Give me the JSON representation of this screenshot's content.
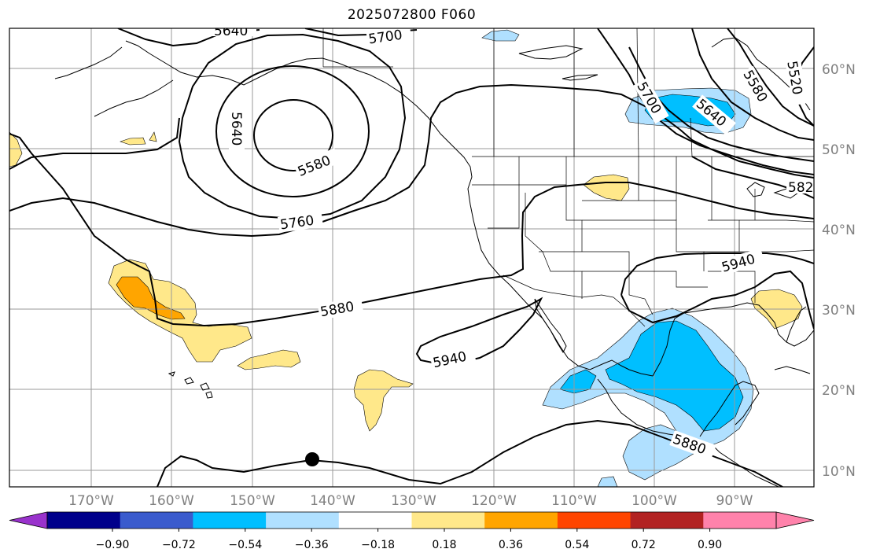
{
  "title": "2025072800 F060",
  "latitude_labels": [
    "60°N",
    "50°N",
    "40°N",
    "30°N",
    "20°N",
    "10°N"
  ],
  "longitude_labels": [
    "170°W",
    "160°W",
    "150°W",
    "140°W",
    "130°W",
    "120°W",
    "110°W",
    "100°W",
    "90°W"
  ],
  "contour_labels": [
    "5640",
    "5700",
    "5580",
    "5520",
    "5700",
    "5640",
    "5640",
    "5580",
    "5760",
    "5880",
    "5940",
    "5940",
    "5880",
    "582"
  ],
  "colorbar": {
    "tick_labels": [
      "−0.90",
      "−0.72",
      "−0.54",
      "−0.36",
      "−0.18",
      "0.18",
      "0.36",
      "0.54",
      "0.72",
      "0.90"
    ],
    "bins": [
      {
        "color": "#9932cc"
      },
      {
        "color": "#00008b"
      },
      {
        "color": "#3a5bcd"
      },
      {
        "color": "#00bfff"
      },
      {
        "color": "#b0e0ff"
      },
      {
        "color": "#ffffff"
      },
      {
        "color": "#ffe88a"
      },
      {
        "color": "#ffa500"
      },
      {
        "color": "#ff4500"
      },
      {
        "color": "#b22222"
      },
      {
        "color": "#ff82ab"
      },
      {
        "color": "#ff82ab"
      }
    ]
  },
  "colors": {
    "contour": "#000000",
    "grid": "#9a9a9a",
    "coast": "#000000",
    "label_gray": "#808080"
  },
  "marker": {
    "type": "filled-circle",
    "color": "#000000"
  }
}
